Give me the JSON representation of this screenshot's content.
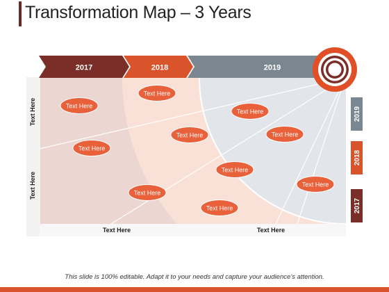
{
  "slide": {
    "title": "Transformation Map – 3 Years",
    "footer": "This slide is 100% editable. Adapt it to your needs and capture your audience’s attention."
  },
  "colors": {
    "dark_red": "#7a2e27",
    "orange": "#d9532b",
    "gray": "#7b8790",
    "bubble": "#e8613a",
    "bottom_bar": "#d9532b"
  },
  "icons": {
    "target": "bullseye-target-icon"
  },
  "timeline": [
    {
      "label": "2017",
      "color": "#7a2e27"
    },
    {
      "label": "2018",
      "color": "#d9532b"
    },
    {
      "label": "2019",
      "color": "#7b8790"
    }
  ],
  "side_tabs": [
    {
      "label": "2019",
      "color": "#7b8790"
    },
    {
      "label": "2018",
      "color": "#d9532b"
    },
    {
      "label": "2017",
      "color": "#7a2e27"
    }
  ],
  "axes": {
    "y_labels": [
      "Text Here",
      "Text Here"
    ],
    "x_labels": [
      "Text Here",
      "Text Here"
    ]
  },
  "bubbles": [
    "Text Here",
    "Text Here",
    "Text Here",
    "Text Here",
    "Text Here",
    "Text Here",
    "Text Here",
    "Text Here",
    "Text Here",
    "Text Here"
  ]
}
